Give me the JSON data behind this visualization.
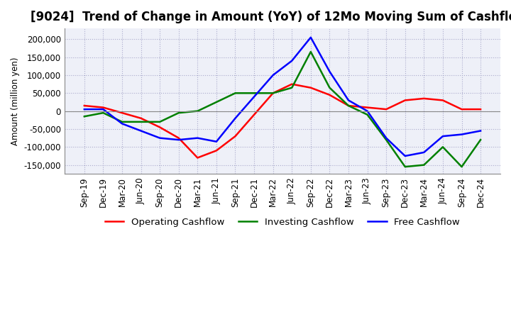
{
  "title": "[9024]  Trend of Change in Amount (YoY) of 12Mo Moving Sum of Cashflows",
  "ylabel": "Amount (million yen)",
  "x_labels": [
    "Sep-19",
    "Dec-19",
    "Mar-20",
    "Jun-20",
    "Sep-20",
    "Dec-20",
    "Mar-21",
    "Jun-21",
    "Sep-21",
    "Dec-21",
    "Mar-22",
    "Jun-22",
    "Sep-22",
    "Dec-22",
    "Mar-23",
    "Jun-23",
    "Sep-23",
    "Dec-23",
    "Mar-24",
    "Jun-24",
    "Sep-24",
    "Dec-24"
  ],
  "operating": [
    15000,
    10000,
    -5000,
    -20000,
    -45000,
    -75000,
    -130000,
    -110000,
    -70000,
    -10000,
    50000,
    75000,
    65000,
    45000,
    15000,
    10000,
    5000,
    30000,
    35000,
    30000,
    5000,
    5000
  ],
  "investing": [
    -15000,
    -5000,
    -30000,
    -30000,
    -30000,
    -5000,
    0,
    25000,
    50000,
    50000,
    50000,
    65000,
    165000,
    65000,
    15000,
    -10000,
    -80000,
    -155000,
    -150000,
    -100000,
    -155000,
    -80000
  ],
  "free": [
    5000,
    5000,
    -35000,
    -55000,
    -75000,
    -80000,
    -75000,
    -85000,
    -20000,
    40000,
    100000,
    140000,
    205000,
    110000,
    30000,
    0,
    -75000,
    -125000,
    -115000,
    -70000,
    -65000,
    -55000
  ],
  "operating_color": "#FF0000",
  "investing_color": "#008000",
  "free_color": "#0000FF",
  "ylim": [
    -175000,
    230000
  ],
  "yticks": [
    -150000,
    -100000,
    -50000,
    0,
    50000,
    100000,
    150000,
    200000
  ],
  "background_color": "#FFFFFF",
  "plot_bg_color": "#EEF0F8",
  "grid_color": "#AAAACC",
  "title_fontsize": 12,
  "axis_fontsize": 8.5,
  "legend_fontsize": 9.5
}
